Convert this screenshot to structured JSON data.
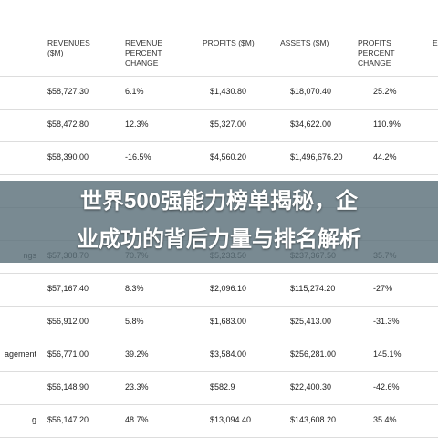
{
  "table": {
    "headers": [
      "REVENUES ($M)",
      "REVENUE PERCENT CHANGE",
      "PROFITS ($M)",
      "ASSETS ($M)",
      "PROFITS PERCENT CHANGE",
      "E"
    ],
    "rows": [
      {
        "cells": [
          "$58,727.30",
          "6.1%",
          "$1,430.80",
          "$18,070.40",
          "25.2%"
        ]
      },
      {
        "cells": [
          "$58,472.80",
          "12.3%",
          "$5,327.00",
          "$34,622.00",
          "110.9%"
        ]
      },
      {
        "cells": [
          "$58,390.00",
          "-16.5%",
          "$4,560.20",
          "$1,496,676.20",
          "44.2%"
        ]
      },
      {
        "name": "ngs",
        "cells": [
          "$57,308.70",
          "70.7%",
          "$5,233.50",
          "$237,367.50",
          "35.7%"
        ]
      },
      {
        "cells": [
          "$57,167.40",
          "8.3%",
          "$2,096.10",
          "$115,274.20",
          "-27%"
        ]
      },
      {
        "cells": [
          "$56,912.00",
          "5.8%",
          "$1,683.00",
          "$25,413.00",
          "-31.3%"
        ]
      },
      {
        "name": "agement",
        "cells": [
          "$56,771.00",
          "39.2%",
          "$3,584.00",
          "$256,281.00",
          "145.1%"
        ]
      },
      {
        "cells": [
          "$56,148.90",
          "23.3%",
          "$582.9",
          "$22,400.30",
          "-42.6%"
        ]
      },
      {
        "name": "g",
        "cells": [
          "$56,147.20",
          "48.7%",
          "$13,094.40",
          "$143,608.20",
          "35.4%"
        ]
      }
    ]
  },
  "banner": {
    "lines": [
      "世界500强能力榜单揭秘，企",
      "业成功的背后力量与排名解析"
    ]
  }
}
